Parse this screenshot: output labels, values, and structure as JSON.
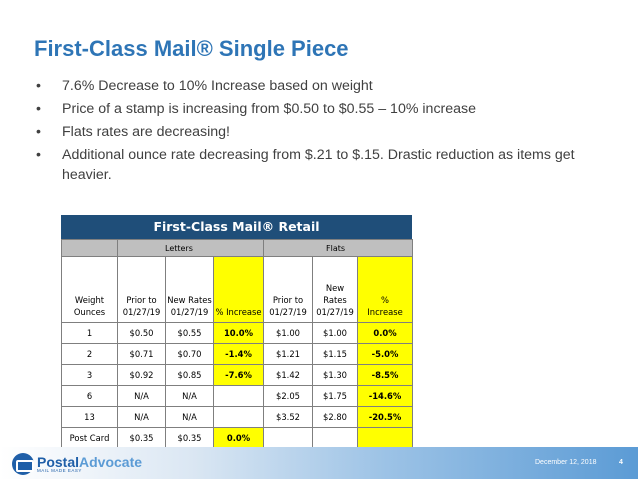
{
  "title": "First-Class Mail® Single Piece",
  "bullets": [
    "7.6% Decrease to 10% Increase based on weight",
    "Price of a stamp is increasing from $0.50 to $0.55 – 10% increase",
    "Flats rates are decreasing!",
    "Additional ounce rate decreasing from $.21 to $.15.  Drastic reduction as items get heavier."
  ],
  "bullet_symbol": "•",
  "table": {
    "title": "First-Class Mail® Retail",
    "groups": {
      "letters": "Letters",
      "flats": "Flats"
    },
    "columns": {
      "weight_line1": "Weight",
      "weight_line2": "Ounces",
      "l_prior_line1": "Prior to",
      "l_prior_line2": "01/27/19",
      "l_new_line1": "New Rates",
      "l_new_line2": "01/27/19",
      "l_increase": "% Increase",
      "f_prior_line1": "Prior to",
      "f_prior_line2": "01/27/19",
      "f_new_line1": "New",
      "f_new_line2": "Rates",
      "f_new_line3": "01/27/19",
      "f_increase_line1": "%",
      "f_increase_line2": "Increase"
    },
    "rows": [
      {
        "weight": "1",
        "l_prior": "$0.50",
        "l_new": "$0.55",
        "l_inc": "10.0%",
        "f_prior": "$1.00",
        "f_new": "$1.00",
        "f_inc": "0.0%"
      },
      {
        "weight": "2",
        "l_prior": "$0.71",
        "l_new": "$0.70",
        "l_inc": "-1.4%",
        "f_prior": "$1.21",
        "f_new": "$1.15",
        "f_inc": "-5.0%"
      },
      {
        "weight": "3",
        "l_prior": "$0.92",
        "l_new": "$0.85",
        "l_inc": "-7.6%",
        "f_prior": "$1.42",
        "f_new": "$1.30",
        "f_inc": "-8.5%"
      },
      {
        "weight": "6",
        "l_prior": "N/A",
        "l_new": "N/A",
        "l_inc": "",
        "f_prior": "$2.05",
        "f_new": "$1.75",
        "f_inc": "-14.6%"
      },
      {
        "weight": "13",
        "l_prior": "N/A",
        "l_new": "N/A",
        "l_inc": "",
        "f_prior": "$3.52",
        "f_new": "$2.80",
        "f_inc": "-20.5%"
      },
      {
        "weight": "Post Card",
        "l_prior": "$0.35",
        "l_new": "$0.35",
        "l_inc": "0.0%",
        "f_prior": "",
        "f_new": "",
        "f_inc": ""
      }
    ]
  },
  "footer": {
    "brand_part1": "Postal",
    "brand_part2": "Advocate",
    "brand_tagline": "MAIL MADE EASY",
    "date": "December 12, 2018",
    "page_number": "4"
  },
  "colors": {
    "title": "#2e75b6",
    "table_header": "#1f4e79",
    "group_row": "#bfbfbf",
    "highlight": "#ffff00"
  }
}
